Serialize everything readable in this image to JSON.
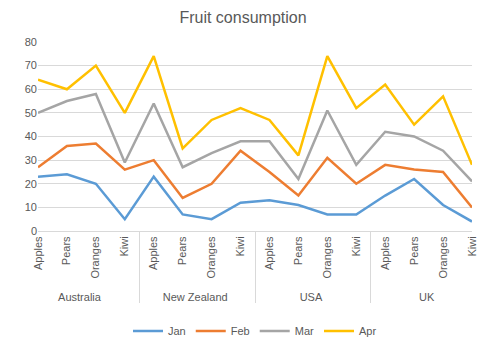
{
  "chart_data": {
    "type": "line",
    "title": "Fruit consumption",
    "groups": [
      "Australia",
      "Australia",
      "Australia",
      "Australia",
      "New Zealand",
      "New Zealand",
      "New Zealand",
      "New Zealand",
      "USA",
      "USA",
      "USA",
      "USA",
      "UK",
      "UK",
      "UK",
      "UK"
    ],
    "categories": [
      "Apples",
      "Pears",
      "Oranges",
      "Kiwi",
      "Apples",
      "Pears",
      "Oranges",
      "Kiwi",
      "Apples",
      "Pears",
      "Oranges",
      "Kiwi",
      "Apples",
      "Pears",
      "Oranges",
      "Kiwi"
    ],
    "series": [
      {
        "name": "Jan",
        "color": "#5b9bd5",
        "values": [
          23,
          24,
          20,
          5,
          23,
          7,
          5,
          12,
          13,
          11,
          7,
          7,
          15,
          22,
          11,
          4
        ]
      },
      {
        "name": "Feb",
        "color": "#ed7d31",
        "values": [
          27,
          36,
          37,
          26,
          30,
          14,
          20,
          34,
          25,
          15,
          31,
          20,
          28,
          26,
          25,
          10
        ]
      },
      {
        "name": "Mar",
        "color": "#a5a5a5",
        "values": [
          50,
          55,
          58,
          29,
          54,
          27,
          33,
          38,
          38,
          22,
          51,
          28,
          42,
          40,
          34,
          21
        ]
      },
      {
        "name": "Apr",
        "color": "#ffc000",
        "values": [
          64,
          60,
          70,
          50,
          74,
          35,
          47,
          52,
          47,
          32,
          74,
          52,
          62,
          45,
          57,
          28
        ]
      }
    ],
    "ylim": [
      0,
      80
    ],
    "yticks": [
      0,
      10,
      20,
      30,
      40,
      50,
      60,
      70,
      80
    ],
    "grid": true,
    "legend": "bottom"
  }
}
